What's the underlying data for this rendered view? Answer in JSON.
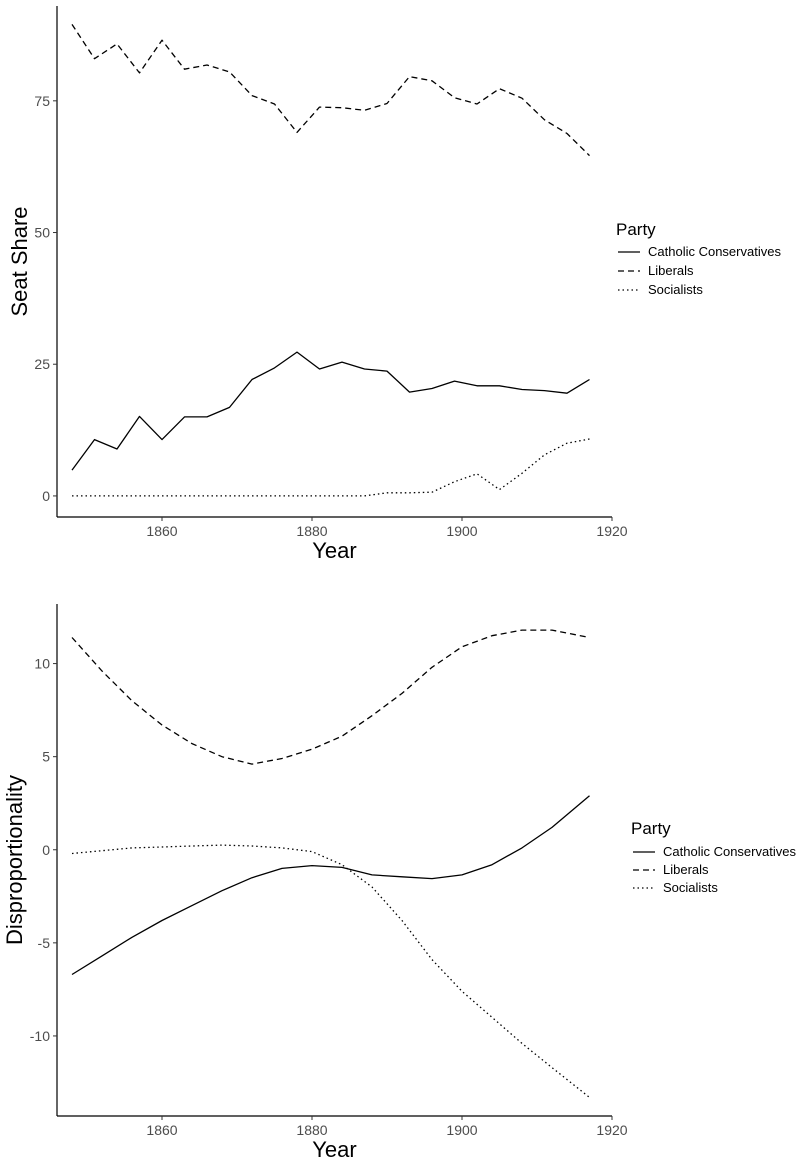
{
  "chart_data": [
    {
      "type": "line",
      "xlabel": "Year",
      "ylabel": "Seat Share",
      "xlim": [
        1846,
        1920
      ],
      "ylim": [
        -4,
        93
      ],
      "xticks": [
        "1860",
        "1880",
        "1900",
        "1920"
      ],
      "yticks": [
        "0",
        "25",
        "50",
        "75"
      ],
      "legend": {
        "title": "Party",
        "position": "right",
        "entries": [
          "Catholic Conservatives",
          "Liberals",
          "Socialists"
        ]
      },
      "series": [
        {
          "name": "Catholic Conservatives",
          "linetype": "solid",
          "x": [
            1848,
            1851,
            1854,
            1857,
            1860,
            1863,
            1866,
            1869,
            1872,
            1875,
            1878,
            1881,
            1884,
            1887,
            1890,
            1893,
            1896,
            1899,
            1902,
            1905,
            1908,
            1911,
            1914,
            1917
          ],
          "y": [
            4.9,
            10.7,
            8.9,
            15.1,
            10.7,
            15.0,
            15.0,
            16.8,
            22.1,
            24.3,
            27.3,
            24.1,
            25.4,
            24.1,
            23.7,
            19.7,
            20.4,
            21.8,
            20.9,
            20.9,
            20.2,
            20.0,
            19.5,
            22.1
          ]
        },
        {
          "name": "Liberals",
          "linetype": "dashed",
          "x": [
            1848,
            1851,
            1854,
            1857,
            1860,
            1863,
            1866,
            1869,
            1872,
            1875,
            1878,
            1881,
            1884,
            1887,
            1890,
            1893,
            1896,
            1899,
            1902,
            1905,
            1908,
            1911,
            1914,
            1917
          ],
          "y": [
            89.5,
            83.0,
            85.8,
            80.3,
            86.5,
            81.0,
            81.8,
            80.5,
            76.0,
            74.4,
            69.0,
            73.8,
            73.7,
            73.2,
            74.5,
            79.6,
            78.8,
            75.6,
            74.4,
            77.3,
            75.5,
            71.4,
            68.8,
            64.6
          ]
        },
        {
          "name": "Socialists",
          "linetype": "dotted",
          "x": [
            1848,
            1851,
            1854,
            1857,
            1860,
            1863,
            1866,
            1869,
            1872,
            1875,
            1878,
            1881,
            1884,
            1887,
            1890,
            1893,
            1896,
            1899,
            1902,
            1905,
            1908,
            1911,
            1914,
            1917
          ],
          "y": [
            0,
            0,
            0,
            0,
            0,
            0,
            0,
            0,
            0,
            0,
            0,
            0,
            0,
            0,
            0.6,
            0.6,
            0.7,
            2.7,
            4.2,
            1.2,
            4.3,
            7.8,
            10.0,
            10.8
          ]
        }
      ]
    },
    {
      "type": "line",
      "xlabel": "Year",
      "ylabel": "Disproportionality",
      "xlim": [
        1846,
        1920
      ],
      "ylim": [
        -14.3,
        13.2
      ],
      "xticks": [
        "1860",
        "1880",
        "1900",
        "1920"
      ],
      "yticks": [
        "-10",
        "-5",
        "0",
        "5",
        "10"
      ],
      "legend": {
        "title": "Party",
        "position": "right",
        "entries": [
          "Catholic Conservatives",
          "Liberals",
          "Socialists"
        ]
      },
      "series": [
        {
          "name": "Catholic Conservatives",
          "linetype": "solid",
          "x": [
            1848,
            1852,
            1856,
            1860,
            1864,
            1868,
            1872,
            1876,
            1880,
            1884,
            1888,
            1892,
            1896,
            1900,
            1904,
            1908,
            1912,
            1917
          ],
          "y": [
            -6.7,
            -5.7,
            -4.7,
            -3.8,
            -3.0,
            -2.2,
            -1.5,
            -1.0,
            -0.85,
            -0.95,
            -1.35,
            -1.45,
            -1.55,
            -1.35,
            -0.8,
            0.1,
            1.2,
            2.9
          ]
        },
        {
          "name": "Liberals",
          "linetype": "dashed",
          "x": [
            1848,
            1852,
            1856,
            1860,
            1864,
            1868,
            1872,
            1876,
            1880,
            1884,
            1888,
            1892,
            1896,
            1900,
            1904,
            1908,
            1912,
            1917
          ],
          "y": [
            11.4,
            9.6,
            8.0,
            6.7,
            5.7,
            5.0,
            4.6,
            4.9,
            5.4,
            6.1,
            7.2,
            8.4,
            9.8,
            10.9,
            11.5,
            11.8,
            11.8,
            11.4
          ]
        },
        {
          "name": "Socialists",
          "linetype": "dotted",
          "x": [
            1848,
            1852,
            1856,
            1860,
            1864,
            1868,
            1872,
            1876,
            1880,
            1884,
            1888,
            1892,
            1896,
            1900,
            1904,
            1908,
            1912,
            1917
          ],
          "y": [
            -0.2,
            -0.05,
            0.1,
            0.15,
            0.2,
            0.25,
            0.2,
            0.1,
            -0.1,
            -0.8,
            -2.0,
            -3.8,
            -5.9,
            -7.6,
            -9.0,
            -10.4,
            -11.7,
            -13.3
          ]
        }
      ]
    }
  ]
}
